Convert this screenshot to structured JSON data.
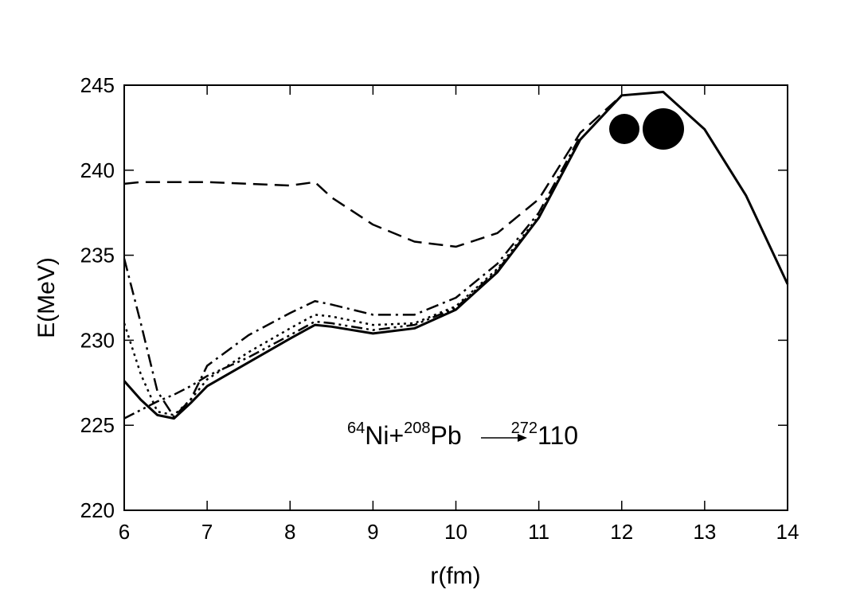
{
  "chart_data": {
    "type": "line",
    "x_label": "r(fm)",
    "y_label": "E(MeV)",
    "annotation": [
      {
        "sup": "64"
      },
      {
        "text": "Ni+"
      },
      {
        "sup": "208"
      },
      {
        "text": "Pb"
      },
      {
        "sup": "272"
      },
      {
        "text": "110"
      }
    ],
    "x": [
      6,
      6.2,
      6.4,
      6.6,
      6.8,
      7,
      7.5,
      8,
      8.3,
      8.5,
      9,
      9.5,
      10,
      10.5,
      11,
      11.5,
      12,
      12.5,
      13,
      13.5,
      14
    ],
    "series": [
      {
        "color": "#000000",
        "dash": "solid",
        "values": [
          227.6,
          226.5,
          225.6,
          225.4,
          226.3,
          227.3,
          228.7,
          230.1,
          230.9,
          230.8,
          230.4,
          230.7,
          231.8,
          234.0,
          237.2,
          241.8,
          244.4,
          244.6,
          242.4,
          238.5,
          233.3
        ]
      },
      {
        "color": "#000000",
        "dash": "dashed",
        "values": [
          239.2,
          239.3,
          239.3,
          239.3,
          239.3,
          239.3,
          239.2,
          239.1,
          239.3,
          238.4,
          236.8,
          235.8,
          235.5,
          236.3,
          238.3,
          242.2,
          244.4,
          null,
          null,
          null,
          null
        ]
      },
      {
        "color": "#000000",
        "dash": "dash-dot",
        "values": [
          234.8,
          231,
          227,
          225.5,
          226.5,
          228.5,
          230.3,
          231.6,
          232.3,
          232.1,
          231.5,
          231.5,
          232.5,
          234.5,
          237.5,
          242,
          null,
          null,
          null,
          null,
          null
        ]
      },
      {
        "color": "#000000",
        "dash": "dotted",
        "values": [
          231,
          228,
          225.8,
          225.6,
          226.5,
          227.7,
          229.3,
          230.7,
          231.5,
          231.4,
          230.9,
          231,
          232,
          234.2,
          237.3,
          241.8,
          null,
          null,
          null,
          null,
          null
        ]
      },
      {
        "color": "#000000",
        "dash": "dash-dot-dot",
        "values": [
          225.4,
          225.9,
          226.4,
          226.8,
          227.3,
          227.9,
          229,
          230.3,
          231.1,
          231,
          230.6,
          230.9,
          231.9,
          234.1,
          237.2,
          241.8,
          null,
          null,
          null,
          null,
          null
        ]
      }
    ],
    "xlim": [
      6,
      14
    ],
    "xticks": [
      6,
      7,
      8,
      9,
      10,
      11,
      12,
      13,
      14
    ],
    "ylim": [
      220,
      245
    ],
    "yticks": [
      220,
      225,
      230,
      235,
      240,
      245
    ],
    "grid": false
  }
}
